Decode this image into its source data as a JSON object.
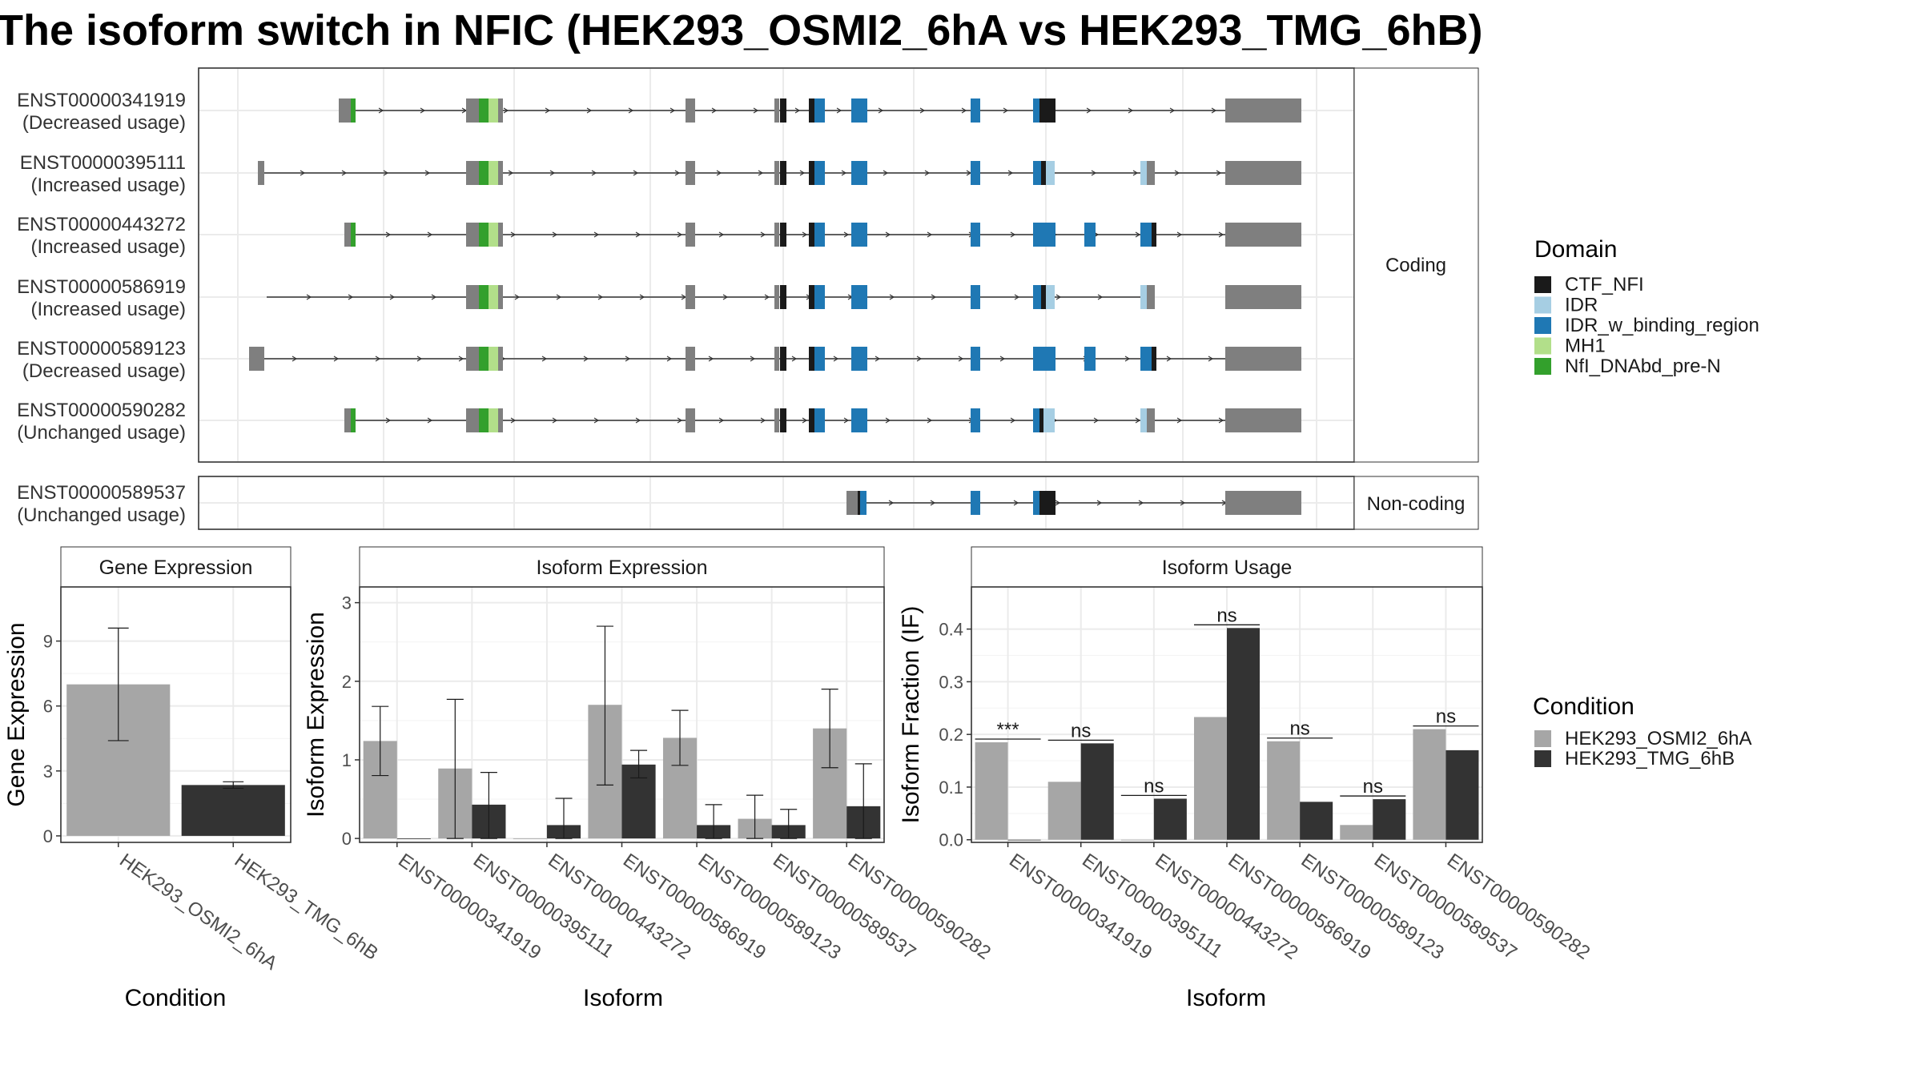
{
  "title": "The isoform switch in NFIC (HEK293_OSMI2_6hA vs HEK293_TMG_6hB)",
  "structure": {
    "panels": [
      "Coding",
      "Non-coding"
    ],
    "isoforms": [
      {
        "id": "ENST00000341919",
        "usage": "(Decreased usage)",
        "panel": "Coding"
      },
      {
        "id": "ENST00000395111",
        "usage": "(Increased usage)",
        "panel": "Coding"
      },
      {
        "id": "ENST00000443272",
        "usage": "(Increased usage)",
        "panel": "Coding"
      },
      {
        "id": "ENST00000586919",
        "usage": "(Increased usage)",
        "panel": "Coding"
      },
      {
        "id": "ENST00000589123",
        "usage": "(Decreased usage)",
        "panel": "Coding"
      },
      {
        "id": "ENST00000590282",
        "usage": "(Unchanged usage)",
        "panel": "Coding"
      },
      {
        "id": "ENST00000589537",
        "usage": "(Unchanged usage)",
        "panel": "Non-coding"
      }
    ]
  },
  "legends": {
    "domain": {
      "title": "Domain",
      "items": [
        {
          "label": "CTF_NFI",
          "color": "#1a1a1a"
        },
        {
          "label": "IDR",
          "color": "#a6cee3"
        },
        {
          "label": "IDR_w_binding_region",
          "color": "#1f78b4"
        },
        {
          "label": "MH1",
          "color": "#b2df8a"
        },
        {
          "label": "NfI_DNAbd_pre-N",
          "color": "#33a02c"
        }
      ]
    },
    "condition": {
      "title": "Condition",
      "items": [
        {
          "label": "HEK293_OSMI2_6hA",
          "color": "#a6a6a6"
        },
        {
          "label": "HEK293_TMG_6hB",
          "color": "#333333"
        }
      ]
    }
  },
  "chart_data": [
    {
      "type": "bar",
      "title": "Gene Expression",
      "xlabel": "Condition",
      "ylabel": "Gene Expression",
      "categories": [
        "HEK293_OSMI2_6hA",
        "HEK293_TMG_6hB"
      ],
      "values": [
        7.0,
        2.35
      ],
      "error_low": [
        4.4,
        2.2
      ],
      "error_high": [
        9.6,
        2.5
      ],
      "colors": [
        "#a6a6a6",
        "#333333"
      ],
      "yticks": [
        0,
        3,
        6,
        9
      ],
      "ylim": [
        -0.3,
        11.5
      ],
      "grid": true
    },
    {
      "type": "bar",
      "title": "Isoform Expression",
      "xlabel": "Isoform",
      "ylabel": "Isoform Expression",
      "categories": [
        "ENST00000341919",
        "ENST00000395111",
        "ENST00000443272",
        "ENST00000586919",
        "ENST00000589123",
        "ENST00000589537",
        "ENST00000590282"
      ],
      "series": [
        {
          "name": "HEK293_OSMI2_6hA",
          "color": "#a6a6a6",
          "values": [
            1.24,
            0.89,
            0.0,
            1.7,
            1.28,
            0.25,
            1.4
          ],
          "error_low": [
            0.8,
            0.0,
            0.0,
            0.68,
            0.93,
            0.0,
            0.9
          ],
          "error_high": [
            1.68,
            1.77,
            0.0,
            2.7,
            1.63,
            0.55,
            1.9
          ]
        },
        {
          "name": "HEK293_TMG_6hB",
          "color": "#333333",
          "values": [
            0.0,
            0.43,
            0.17,
            0.94,
            0.17,
            0.17,
            0.41
          ],
          "error_low": [
            0.0,
            0.0,
            0.0,
            0.77,
            0.0,
            0.0,
            0.0
          ],
          "error_high": [
            0.0,
            0.84,
            0.51,
            1.12,
            0.43,
            0.37,
            0.95
          ]
        }
      ],
      "yticks": [
        0,
        1,
        2,
        3
      ],
      "ylim": [
        -0.05,
        3.2
      ],
      "grid": true
    },
    {
      "type": "bar",
      "title": "Isoform Usage",
      "xlabel": "Isoform",
      "ylabel": "Isoform Fraction (IF)",
      "categories": [
        "ENST00000341919",
        "ENST00000395111",
        "ENST00000443272",
        "ENST00000586919",
        "ENST00000589123",
        "ENST00000589537",
        "ENST00000590282"
      ],
      "series": [
        {
          "name": "HEK293_OSMI2_6hA",
          "color": "#a6a6a6",
          "values": [
            0.185,
            0.11,
            0.0,
            0.233,
            0.187,
            0.028,
            0.21
          ]
        },
        {
          "name": "HEK293_TMG_6hB",
          "color": "#333333",
          "values": [
            0.0,
            0.183,
            0.078,
            0.402,
            0.072,
            0.077,
            0.17
          ]
        }
      ],
      "significance": [
        "***",
        "ns",
        "ns",
        "ns",
        "ns",
        "ns",
        "ns"
      ],
      "yticks": [
        0.0,
        0.1,
        0.2,
        0.3,
        0.4
      ],
      "ylim": [
        -0.005,
        0.48
      ],
      "grid": true
    }
  ]
}
